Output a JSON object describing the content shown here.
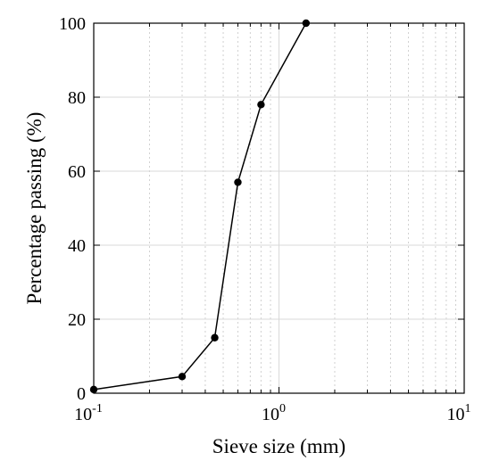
{
  "chart_data": {
    "type": "line",
    "title": "",
    "xlabel": "Sieve size (mm)",
    "ylabel": "Percentage passing (%)",
    "xscale": "log",
    "xlim": [
      0.1,
      10
    ],
    "ylim": [
      0,
      100
    ],
    "grid": true,
    "x_ticks": [
      {
        "base": "10",
        "exp": "-1",
        "value": 0.1
      },
      {
        "base": "10",
        "exp": "0",
        "value": 1
      },
      {
        "base": "10",
        "exp": "1",
        "value": 10
      }
    ],
    "y_ticks": [
      "0",
      "20",
      "40",
      "60",
      "80",
      "100"
    ],
    "series": [
      {
        "x": [
          0.1,
          0.3,
          0.45,
          0.6,
          0.8,
          1.4
        ],
        "y": [
          1,
          4.5,
          15,
          57,
          78,
          100
        ],
        "color": "#000000",
        "marker": "circle"
      }
    ]
  }
}
